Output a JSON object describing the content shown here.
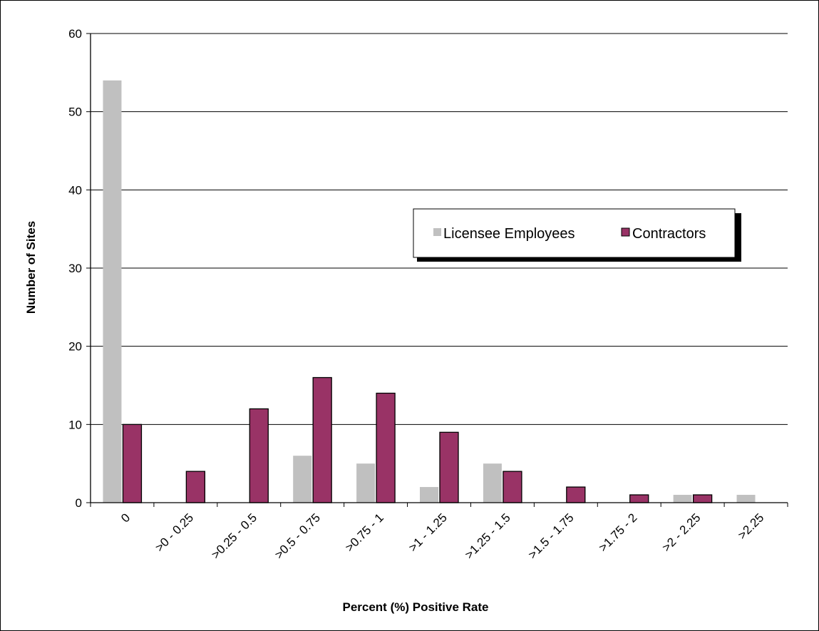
{
  "chart_data": {
    "type": "bar",
    "title": "",
    "xlabel": "Percent (%) Positive Rate",
    "ylabel": "Number of Sites",
    "ylim": [
      0,
      60
    ],
    "yticks": [
      0,
      10,
      20,
      30,
      40,
      50,
      60
    ],
    "grid": true,
    "legend_position": "right",
    "categories": [
      "0",
      ">0 - 0.25",
      ">0.25 - 0.5",
      ">0.5 - 0.75",
      ">0.75 - 1",
      ">1 - 1.25",
      ">1.25 - 1.5",
      ">1.5 - 1.75",
      ">1.75 - 2",
      ">2 - 2.25",
      ">2.25"
    ],
    "series": [
      {
        "name": "Licensee Employees",
        "color": "#c0c0c0",
        "values": [
          54,
          0,
          0,
          6,
          5,
          2,
          5,
          0,
          0,
          1,
          1
        ]
      },
      {
        "name": "Contractors",
        "color": "#993366",
        "values": [
          10,
          4,
          12,
          16,
          14,
          9,
          4,
          2,
          1,
          1,
          0
        ]
      }
    ]
  }
}
